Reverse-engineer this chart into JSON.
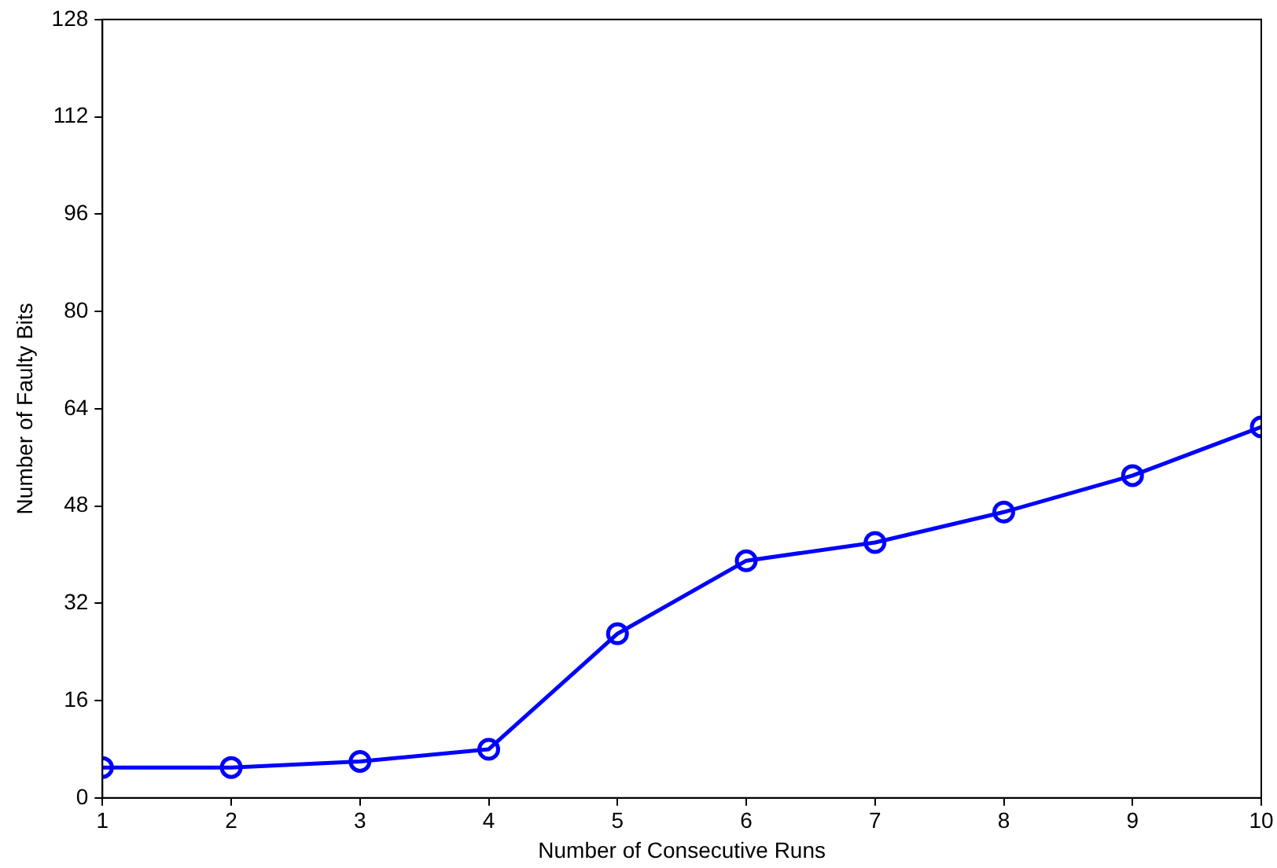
{
  "chart_data": {
    "type": "line",
    "xlabel": "Number of Consecutive Runs",
    "ylabel": "Number of Faulty Bits",
    "x": [
      1,
      2,
      3,
      4,
      5,
      6,
      7,
      8,
      9,
      10
    ],
    "series": [
      {
        "color": "#0000ff",
        "values": [
          5,
          5,
          6,
          8,
          27,
          39,
          42,
          47,
          53,
          61
        ]
      }
    ],
    "xlim": [
      1,
      10
    ],
    "xticks": [
      1,
      2,
      3,
      4,
      5,
      6,
      7,
      8,
      9,
      10
    ],
    "ylim": [
      0,
      128
    ],
    "yticks": [
      0,
      16,
      32,
      48,
      64,
      80,
      96,
      112,
      128
    ],
    "grid": false,
    "legend": false,
    "marker": "circle",
    "line_style": "solid"
  }
}
